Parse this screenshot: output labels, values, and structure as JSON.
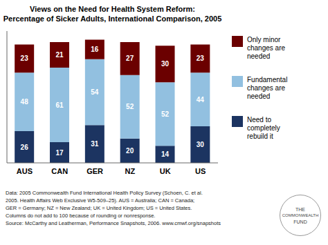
{
  "chart_data": {
    "type": "bar",
    "title": "Views on the Need for Health System Reform:",
    "subtitle": "Percentage of Sicker Adults, International Comparison, 2005",
    "categories": [
      "AUS",
      "CAN",
      "GER",
      "NZ",
      "UK",
      "US"
    ],
    "series": [
      {
        "name": "Need to\ncompletely\nrebuild it",
        "color": "#1C3461",
        "values": [
          26,
          17,
          31,
          20,
          14,
          30
        ]
      },
      {
        "name": "Fundamental\nchanges are\nneeded",
        "color": "#92C0E0",
        "values": [
          48,
          61,
          54,
          52,
          52,
          44
        ]
      },
      {
        "name": "Only minor\nchanges are\nneeded",
        "color": "#6B0000",
        "values": [
          23,
          21,
          16,
          27,
          30,
          23
        ]
      }
    ],
    "stacked": true,
    "data_labels": true,
    "ylim": [
      0,
      108
    ],
    "yticks": [],
    "tick_labels": "x",
    "grid": false,
    "legend": "right",
    "annotations": [
      [
        "Data: 2005 Commonwealth Fund International Health Policy Survey (Schoen, C. et al.",
        "2005. Health Affairs Web Exclusive W5-509–25). AUS = Australia; CAN = Canada;",
        "GER = Germany; NZ = New Zealand; UK = United Kingdom; US = United States.",
        "Columns do not add to 100 because of rounding or nonresponse.",
        "Source: McCarthy and Leatherman, Performance Snapshots, 2006. www.cmwf.org/snapshots"
      ],
      [
        "THE",
        "COMMONWEALTH",
        "FUND"
      ]
    ]
  }
}
